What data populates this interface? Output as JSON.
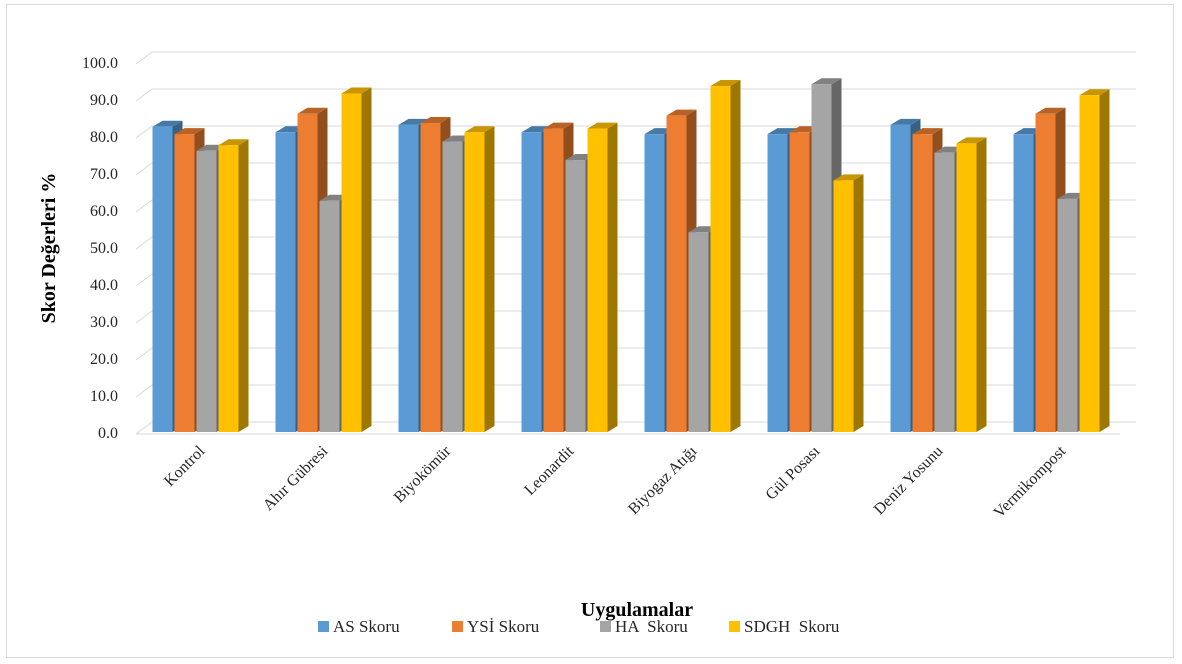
{
  "chart_data": {
    "type": "bar",
    "style": "3d-clustered-column",
    "categories": [
      "Kontrol",
      "Ahır Gübresi",
      "Biyokömür",
      "Leonardit",
      "Biyogaz Atığı",
      "Gül Posası",
      "Deniz Yosunu",
      "Vermikompost"
    ],
    "series": [
      {
        "name": "AS Skoru",
        "color": "#5b9bd5",
        "values": [
          82.5,
          81.0,
          83.0,
          81.0,
          80.5,
          80.5,
          83.0,
          80.5
        ]
      },
      {
        "name": "YSİ Skoru",
        "color": "#ed7d31",
        "values": [
          80.5,
          86.0,
          83.5,
          82.0,
          85.5,
          81.0,
          80.5,
          86.0
        ]
      },
      {
        "name": "HA  Skoru",
        "color": "#a5a5a5",
        "values": [
          76.0,
          62.5,
          78.5,
          73.5,
          54.0,
          94.0,
          75.5,
          63.0
        ]
      },
      {
        "name": "SDGH  Skoru",
        "color": "#ffc000",
        "values": [
          77.5,
          91.5,
          81.0,
          82.0,
          93.5,
          68.0,
          78.0,
          91.0
        ]
      }
    ],
    "ylim": [
      0,
      100
    ],
    "yticks": [
      "0.0",
      "10.0",
      "20.0",
      "30.0",
      "40.0",
      "50.0",
      "60.0",
      "70.0",
      "80.0",
      "90.0",
      "100.0"
    ],
    "ylabel": "Skor Değerleri %",
    "xlabel": "Uygulamalar",
    "grid": true,
    "legend_position": "bottom"
  }
}
